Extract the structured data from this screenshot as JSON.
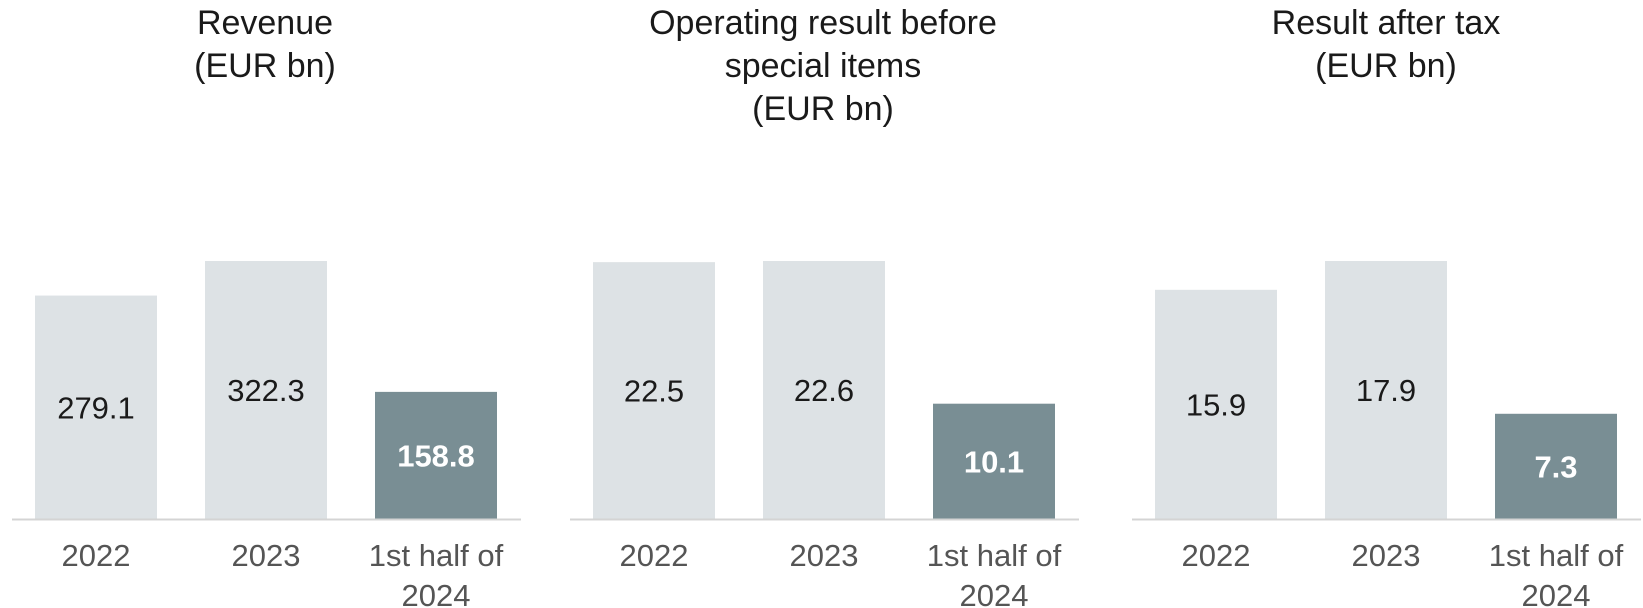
{
  "colors": {
    "bar_default": "#dde2e5",
    "bar_highlight": "#798e94",
    "baseline": "#d4d4d4",
    "label_highlight": "#ffffff"
  },
  "chart_data": [
    {
      "type": "bar",
      "title_lines": [
        "Revenue",
        "(EUR bn)"
      ],
      "categories": [
        [
          "2022"
        ],
        [
          "2023"
        ],
        [
          "1st half of",
          "2024"
        ]
      ],
      "values": [
        279.1,
        322.3,
        158.8
      ],
      "value_labels": [
        "279.1",
        "322.3",
        "158.8"
      ],
      "highlight_index": 2,
      "ylim": [
        0,
        322.3
      ]
    },
    {
      "type": "bar",
      "title_lines": [
        "Operating result before",
        "special items",
        "(EUR bn)"
      ],
      "categories": [
        [
          "2022"
        ],
        [
          "2023"
        ],
        [
          "1st half of",
          "2024"
        ]
      ],
      "values": [
        22.5,
        22.6,
        10.1
      ],
      "value_labels": [
        "22.5",
        "22.6",
        "10.1"
      ],
      "highlight_index": 2,
      "ylim": [
        0,
        22.6
      ]
    },
    {
      "type": "bar",
      "title_lines": [
        "Result after tax",
        "(EUR bn)"
      ],
      "categories": [
        [
          "2022"
        ],
        [
          "2023"
        ],
        [
          "1st half of",
          "2024"
        ]
      ],
      "values": [
        15.9,
        17.9,
        7.3
      ],
      "value_labels": [
        "15.9",
        "17.9",
        "7.3"
      ],
      "highlight_index": 2,
      "ylim": [
        0,
        17.9
      ]
    }
  ]
}
